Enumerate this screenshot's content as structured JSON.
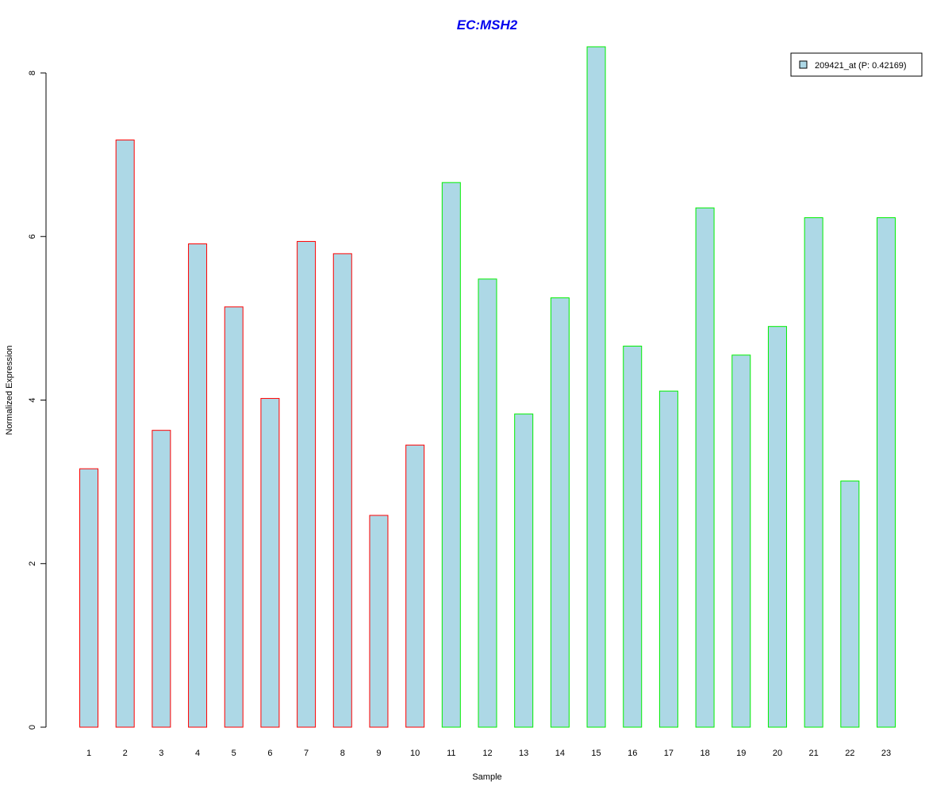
{
  "chart_data": {
    "type": "bar",
    "title": "EC:MSH2",
    "xlabel": "Sample",
    "ylabel": "Normalized Expression",
    "ylim": [
      0,
      8
    ],
    "yticks": [
      "0",
      "2",
      "4",
      "6",
      "8"
    ],
    "categories": [
      "1",
      "2",
      "3",
      "4",
      "5",
      "6",
      "7",
      "8",
      "9",
      "10",
      "11",
      "12",
      "13",
      "14",
      "15",
      "16",
      "17",
      "18",
      "19",
      "20",
      "21",
      "22",
      "23"
    ],
    "values": [
      3.16,
      7.18,
      3.63,
      5.91,
      5.14,
      4.02,
      5.94,
      5.79,
      2.59,
      3.45,
      6.66,
      5.48,
      3.83,
      5.25,
      8.32,
      4.66,
      4.11,
      6.35,
      4.55,
      4.9,
      6.23,
      3.01,
      6.23
    ],
    "groups": [
      "red",
      "red",
      "red",
      "red",
      "red",
      "red",
      "red",
      "red",
      "red",
      "red",
      "green",
      "green",
      "green",
      "green",
      "green",
      "green",
      "green",
      "green",
      "green",
      "green",
      "green",
      "green",
      "green"
    ],
    "legend": {
      "label": "209421_at (P: 0.42169)",
      "placement": "top-right"
    },
    "colors": {
      "fill": "#add8e6",
      "red": "#ff0000",
      "green": "#00ee00",
      "title": "#0000ee"
    }
  }
}
